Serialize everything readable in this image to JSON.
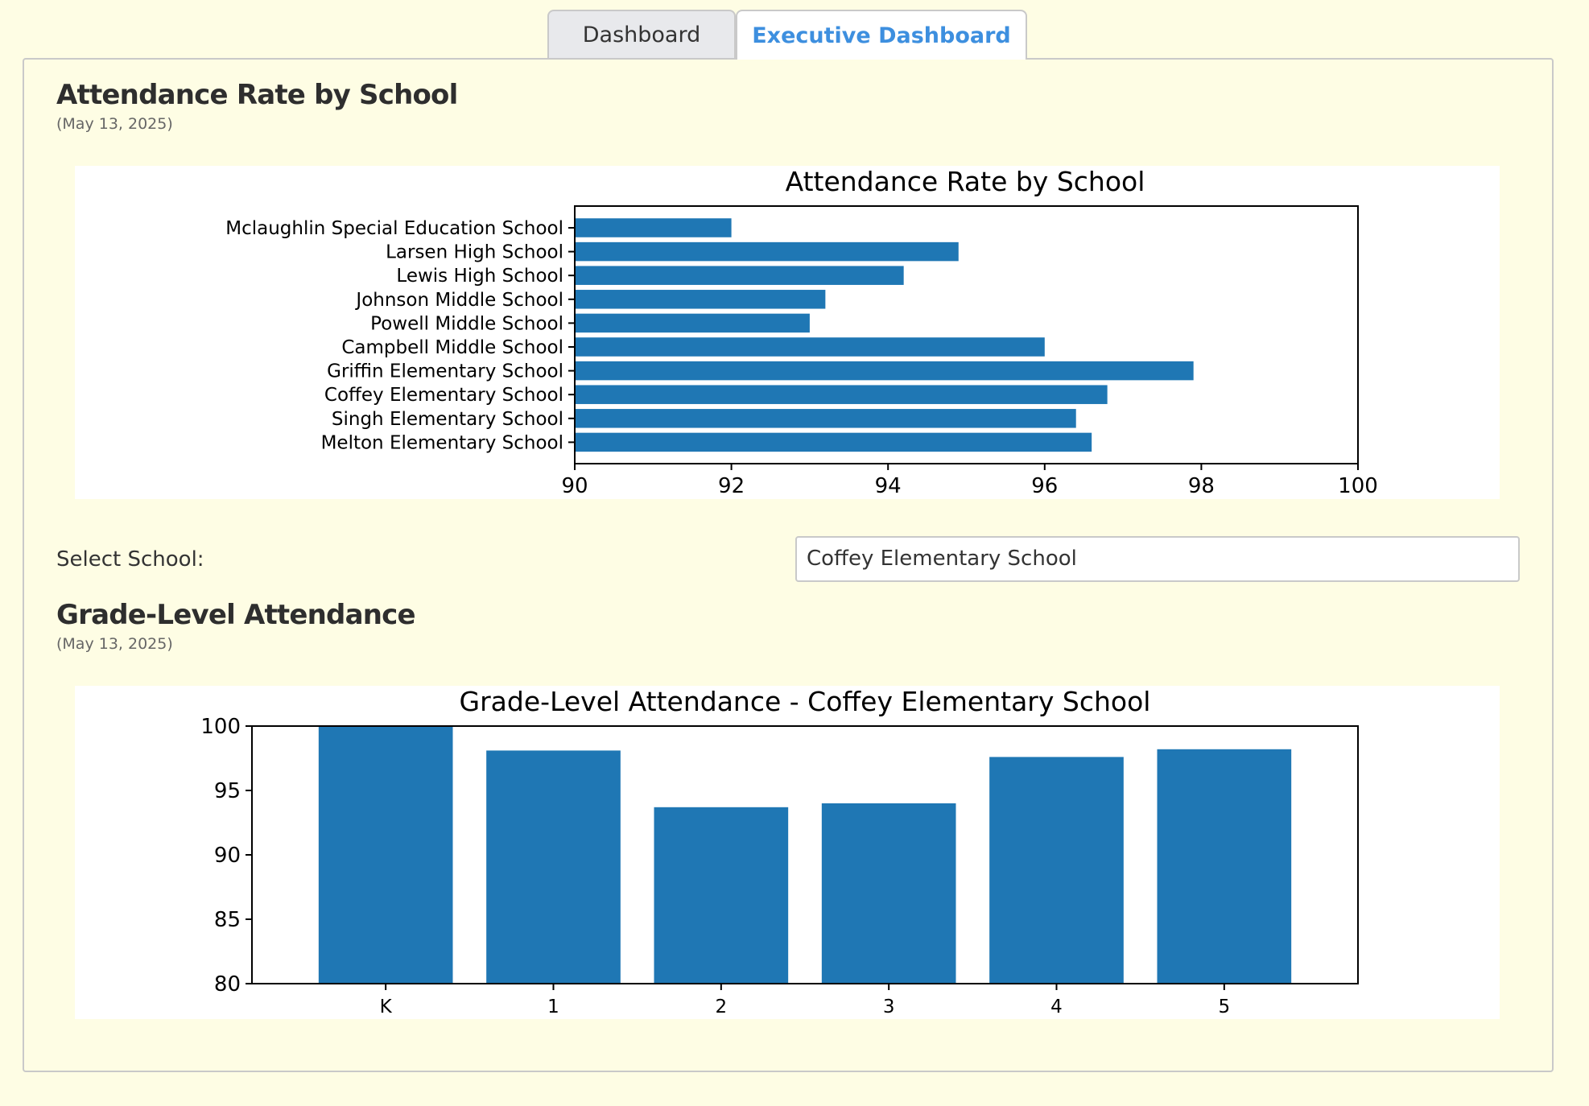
{
  "tabs": [
    {
      "label": "Dashboard",
      "active": false
    },
    {
      "label": "Executive Dashboard",
      "active": true
    }
  ],
  "section1": {
    "heading": "Attendance Rate by School",
    "date": "(May 13, 2025)"
  },
  "selector": {
    "label": "Select School:",
    "value": "Coffey Elementary School"
  },
  "section2": {
    "heading": "Grade-Level Attendance",
    "date": "(May 13, 2025)"
  },
  "colors": {
    "bar": "#1f77b4",
    "background": "#fefde4",
    "active_tab_text": "#3d8fdf"
  },
  "chart_data": [
    {
      "type": "bar",
      "orientation": "horizontal",
      "title": "Attendance Rate by School",
      "categories": [
        "Mclaughlin Special Education School",
        "Larsen High School",
        "Lewis High School",
        "Johnson Middle School",
        "Powell Middle School",
        "Campbell Middle School",
        "Griffin Elementary School",
        "Coffey Elementary School",
        "Singh Elementary School",
        "Melton Elementary School"
      ],
      "values": [
        92.0,
        94.9,
        94.2,
        93.2,
        93.0,
        96.0,
        97.9,
        96.8,
        96.4,
        96.6
      ],
      "xlim": [
        90,
        100
      ],
      "xticks": [
        "90",
        "92",
        "94",
        "96",
        "98",
        "100"
      ],
      "xlabel": "",
      "ylabel": ""
    },
    {
      "type": "bar",
      "title": "Grade-Level Attendance - Coffey Elementary School",
      "categories": [
        "K",
        "1",
        "2",
        "3",
        "4",
        "5"
      ],
      "values": [
        100.0,
        98.1,
        93.7,
        94.0,
        97.6,
        98.2
      ],
      "ylim": [
        80,
        100
      ],
      "yticks": [
        "80",
        "85",
        "90",
        "95",
        "100"
      ],
      "xlabel": "",
      "ylabel": ""
    }
  ]
}
